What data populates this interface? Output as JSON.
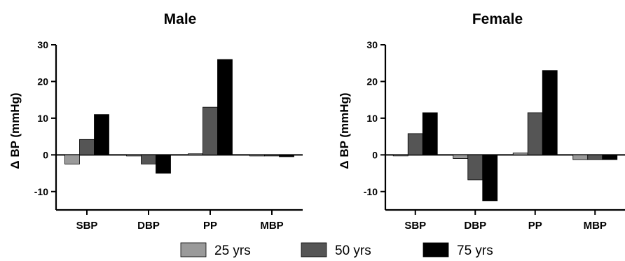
{
  "chart_data": [
    {
      "type": "bar",
      "title": "Male",
      "ylabel": "Δ BP (mmHg)",
      "xlabel": "",
      "categories": [
        "SBP",
        "DBP",
        "PP",
        "MBP"
      ],
      "ylim": [
        -15,
        30
      ],
      "yticks": [
        30,
        20,
        10,
        0,
        -10
      ],
      "series": [
        {
          "name": "25 yrs",
          "color": "#9a9a9a",
          "values": [
            -2.5,
            -0.3,
            0.3,
            -0.3
          ]
        },
        {
          "name": "50 yrs",
          "color": "#555555",
          "values": [
            4.2,
            -2.5,
            13,
            -0.3
          ]
        },
        {
          "name": "75 yrs",
          "color": "#000000",
          "values": [
            11,
            -5,
            26,
            -0.5
          ]
        }
      ]
    },
    {
      "type": "bar",
      "title": "Female",
      "ylabel": "Δ BP (mmHg)",
      "xlabel": "",
      "categories": [
        "SBP",
        "DBP",
        "PP",
        "MBP"
      ],
      "ylim": [
        -15,
        30
      ],
      "yticks": [
        30,
        20,
        10,
        0,
        -10
      ],
      "series": [
        {
          "name": "25 yrs",
          "color": "#9a9a9a",
          "values": [
            0,
            -1,
            0.5,
            -1.3
          ]
        },
        {
          "name": "50 yrs",
          "color": "#555555",
          "values": [
            5.8,
            -6.8,
            11.5,
            -1.3
          ]
        },
        {
          "name": "75 yrs",
          "color": "#000000",
          "values": [
            11.5,
            -12.5,
            23,
            -1.3
          ]
        }
      ]
    }
  ],
  "legend": {
    "items": [
      {
        "label": "25 yrs",
        "color": "#9a9a9a"
      },
      {
        "label": "50 yrs",
        "color": "#555555"
      },
      {
        "label": "75 yrs",
        "color": "#000000"
      }
    ]
  }
}
